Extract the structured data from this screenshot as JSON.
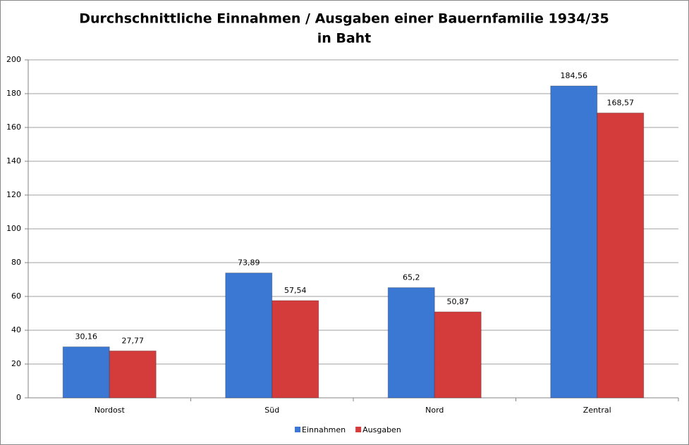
{
  "chart_data": {
    "type": "bar",
    "title": "Durchschnittliche Einnahmen / Ausgaben einer Bauernfamilie 1934/35",
    "subtitle": "in Baht",
    "categories": [
      "Nordost",
      "Süd",
      "Nord",
      "Zentral"
    ],
    "series": [
      {
        "name": "Einnahmen",
        "color": "#3b78d4",
        "values": [
          30.16,
          73.89,
          65.2,
          184.56
        ],
        "value_labels": [
          "30,16",
          "73,89",
          "65,2",
          "184,56"
        ]
      },
      {
        "name": "Ausgaben",
        "color": "#d43c3c",
        "values": [
          27.77,
          57.54,
          50.87,
          168.57
        ],
        "value_labels": [
          "27,77",
          "57,54",
          "50,87",
          "168,57"
        ]
      }
    ],
    "ylim": [
      0,
      200
    ],
    "yticks": [
      0,
      20,
      40,
      60,
      80,
      100,
      120,
      140,
      160,
      180,
      200
    ],
    "grid": true,
    "legend": "bottom"
  }
}
